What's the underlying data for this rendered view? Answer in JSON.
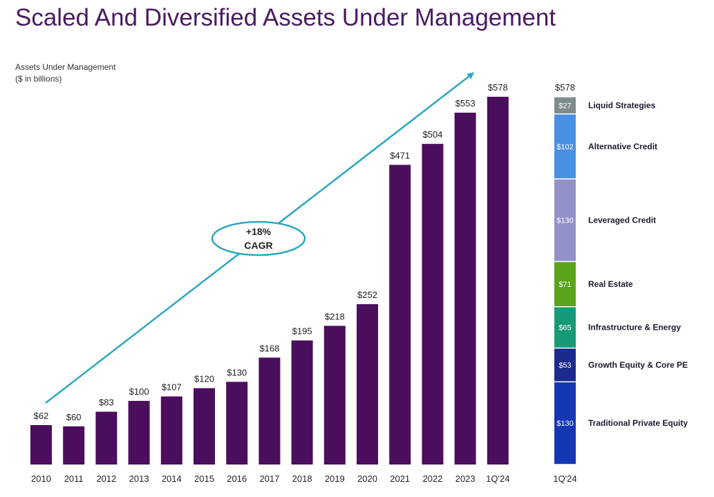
{
  "title": "Scaled And Diversified Assets Under Management",
  "subtitle_line1": "Assets Under Management",
  "subtitle_line2": "($ in billions)",
  "cagr_line1": "+18%",
  "cagr_line2": "CAGR",
  "colors": {
    "bar": "#4b0e5c",
    "arrow": "#2aa7bf",
    "title": "#4a1a63"
  },
  "chart_data": [
    {
      "type": "bar",
      "title": "Assets Under Management",
      "ylabel": "$ in billions",
      "categories": [
        "2010",
        "2011",
        "2012",
        "2013",
        "2014",
        "2015",
        "2016",
        "2017",
        "2018",
        "2019",
        "2020",
        "2021",
        "2022",
        "2023",
        "1Q'24"
      ],
      "values": [
        62,
        60,
        83,
        100,
        107,
        120,
        130,
        168,
        195,
        218,
        252,
        471,
        504,
        553,
        578
      ],
      "value_labels": [
        "$62",
        "$60",
        "$83",
        "$100",
        "$107",
        "$120",
        "$130",
        "$168",
        "$195",
        "$218",
        "$252",
        "$471",
        "$504",
        "$553",
        "$578"
      ],
      "ylim": [
        0,
        578
      ],
      "grid": false,
      "annotation": "+18% CAGR"
    },
    {
      "type": "stacked-bar",
      "category": "1Q'24",
      "total_label": "$578",
      "total": 578,
      "segments": [
        {
          "name": "Liquid Strategies",
          "value": 27,
          "label": "$27",
          "color": "#7f8c8d"
        },
        {
          "name": "Alternative Credit",
          "value": 102,
          "label": "$102",
          "color": "#4a90e2"
        },
        {
          "name": "Leveraged Credit",
          "value": 130,
          "label": "$130",
          "color": "#9391c9"
        },
        {
          "name": "Real Estate",
          "value": 71,
          "label": "$71",
          "color": "#5aa51b"
        },
        {
          "name": "Infrastructure & Energy",
          "value": 65,
          "label": "$65",
          "color": "#179a78"
        },
        {
          "name": "Growth Equity & Core PE",
          "value": 53,
          "label": "$53",
          "color": "#1b2a8c"
        },
        {
          "name": "Traditional Private Equity",
          "value": 130,
          "label": "$130",
          "color": "#1537b5"
        }
      ]
    }
  ]
}
